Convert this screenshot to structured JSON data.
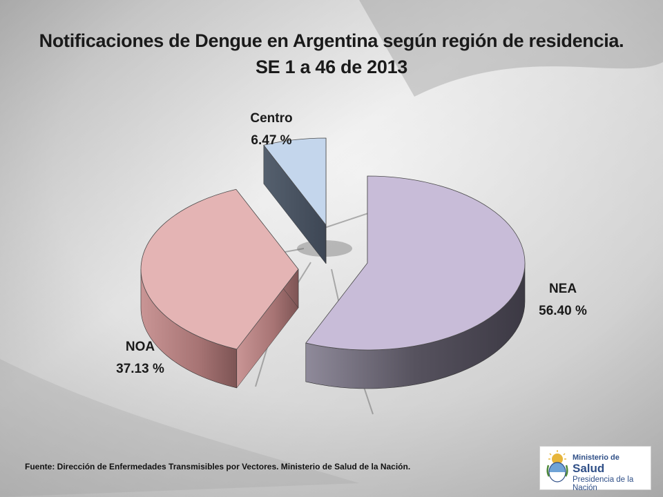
{
  "title_line1": "Notificaciones de Dengue en Argentina según región de residencia.",
  "title_line2": "SE 1 a 46 de 2013",
  "source": "Fuente: Dirección de Enfermedades Transmisibles por Vectores.  Ministerio de Salud de la Nación.",
  "logo": {
    "line1": "Ministerio de",
    "line2": "Salud",
    "line3": "Presidencia de la Nación",
    "emblem": "argentina-coat-of-arms"
  },
  "colors": {
    "NEA": "#c8bcd8",
    "NOA": "#e4b4b4",
    "Centro": "#c4d6ec"
  },
  "chart_data": {
    "type": "pie",
    "style": "3d-exploded",
    "title": "Notificaciones de Dengue en Argentina según región de residencia. SE 1 a 46 de 2013",
    "unit": "%",
    "slices": [
      {
        "name": "NEA",
        "value": 56.4,
        "label": "56.40 %"
      },
      {
        "name": "NOA",
        "value": 37.13,
        "label": "37.13 %"
      },
      {
        "name": "Centro",
        "value": 6.47,
        "label": "6.47 %"
      }
    ]
  }
}
